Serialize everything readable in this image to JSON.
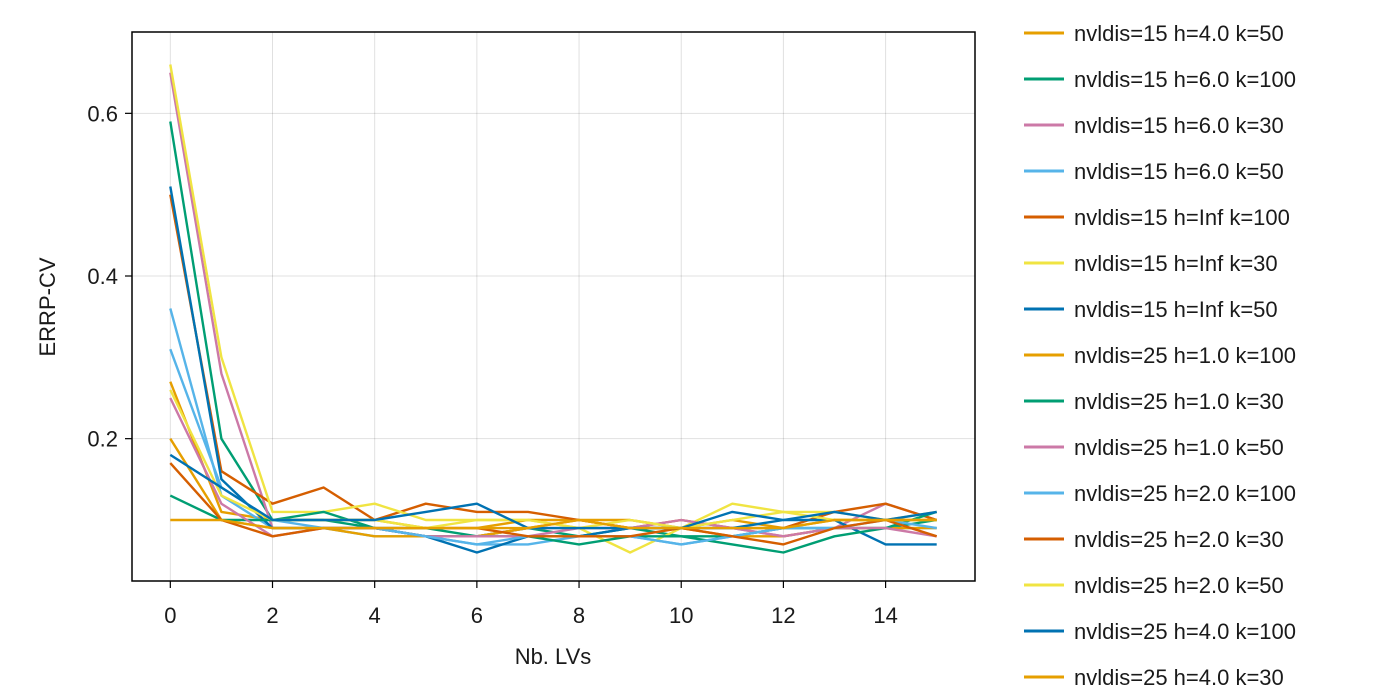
{
  "chart_data": {
    "type": "line",
    "xlabel": "Nb. LVs",
    "ylabel": "ERRP-CV",
    "xlim": [
      -0.75,
      15.75
    ],
    "ylim": [
      0.025,
      0.7
    ],
    "xticks": [
      0,
      2,
      4,
      6,
      8,
      10,
      12,
      14
    ],
    "yticks": [
      0.2,
      0.4,
      0.6
    ],
    "grid": true,
    "legend_position": "right",
    "x": [
      0,
      1,
      2,
      3,
      4,
      5,
      6,
      7,
      8,
      9,
      10,
      11,
      12,
      13,
      14,
      15
    ],
    "series": [
      {
        "name": "nvldis=15 h=4.0 k=50",
        "color": "#E69F00",
        "values": [
          0.27,
          0.11,
          0.1,
          0.1,
          0.1,
          0.09,
          0.09,
          0.1,
          0.1,
          0.09,
          0.09,
          0.1,
          0.09,
          0.1,
          0.1,
          0.1
        ]
      },
      {
        "name": "nvldis=15 h=6.0 k=100",
        "color": "#009E73",
        "values": [
          0.59,
          0.2,
          0.1,
          0.1,
          0.09,
          0.09,
          0.08,
          0.09,
          0.08,
          0.09,
          0.08,
          0.08,
          0.09,
          0.09,
          0.09,
          0.1
        ]
      },
      {
        "name": "nvldis=15 h=6.0 k=30",
        "color": "#CC79A7",
        "values": [
          0.65,
          0.28,
          0.09,
          0.09,
          0.09,
          0.08,
          0.08,
          0.09,
          0.09,
          0.09,
          0.09,
          0.09,
          0.08,
          0.09,
          0.12,
          0.1
        ]
      },
      {
        "name": "nvldis=15 h=6.0 k=50",
        "color": "#56B4E9",
        "values": [
          0.36,
          0.13,
          0.09,
          0.09,
          0.08,
          0.08,
          0.07,
          0.07,
          0.08,
          0.08,
          0.07,
          0.08,
          0.09,
          0.09,
          0.09,
          0.09
        ]
      },
      {
        "name": "nvldis=15 h=Inf k=100",
        "color": "#D55E00",
        "values": [
          0.5,
          0.16,
          0.12,
          0.14,
          0.1,
          0.12,
          0.11,
          0.11,
          0.1,
          0.09,
          0.1,
          0.09,
          0.09,
          0.11,
          0.12,
          0.1
        ]
      },
      {
        "name": "nvldis=15 h=Inf k=30",
        "color": "#F0E442",
        "values": [
          0.66,
          0.3,
          0.11,
          0.11,
          0.12,
          0.1,
          0.1,
          0.1,
          0.09,
          0.06,
          0.09,
          0.12,
          0.11,
          0.11,
          0.1,
          0.11
        ]
      },
      {
        "name": "nvldis=15 h=Inf k=50",
        "color": "#0072B2",
        "values": [
          0.51,
          0.15,
          0.09,
          0.09,
          0.09,
          0.08,
          0.06,
          0.08,
          0.08,
          0.09,
          0.09,
          0.09,
          0.1,
          0.1,
          0.07,
          0.07
        ]
      },
      {
        "name": "nvldis=25 h=1.0 k=100",
        "color": "#E69F00",
        "values": [
          0.2,
          0.1,
          0.09,
          0.09,
          0.08,
          0.08,
          0.08,
          0.09,
          0.1,
          0.1,
          0.09,
          0.08,
          0.08,
          0.09,
          0.09,
          0.09
        ]
      },
      {
        "name": "nvldis=25 h=1.0 k=30",
        "color": "#009E73",
        "values": [
          0.13,
          0.1,
          0.1,
          0.11,
          0.09,
          0.08,
          0.08,
          0.08,
          0.07,
          0.08,
          0.08,
          0.07,
          0.06,
          0.08,
          0.09,
          0.11
        ]
      },
      {
        "name": "nvldis=25 h=1.0 k=50",
        "color": "#CC79A7",
        "values": [
          0.25,
          0.12,
          0.08,
          0.09,
          0.09,
          0.08,
          0.08,
          0.08,
          0.09,
          0.09,
          0.1,
          0.09,
          0.08,
          0.09,
          0.09,
          0.08
        ]
      },
      {
        "name": "nvldis=25 h=2.0 k=100",
        "color": "#56B4E9",
        "values": [
          0.31,
          0.14,
          0.1,
          0.09,
          0.09,
          0.08,
          0.07,
          0.08,
          0.08,
          0.08,
          0.07,
          0.08,
          0.09,
          0.09,
          0.1,
          0.09
        ]
      },
      {
        "name": "nvldis=25 h=2.0 k=30",
        "color": "#D55E00",
        "values": [
          0.17,
          0.1,
          0.08,
          0.09,
          0.09,
          0.09,
          0.09,
          0.08,
          0.08,
          0.08,
          0.09,
          0.08,
          0.07,
          0.09,
          0.1,
          0.08
        ]
      },
      {
        "name": "nvldis=25 h=2.0 k=50",
        "color": "#F0E442",
        "values": [
          0.26,
          0.13,
          0.1,
          0.1,
          0.1,
          0.09,
          0.1,
          0.1,
          0.09,
          0.1,
          0.09,
          0.1,
          0.11,
          0.1,
          0.1,
          0.1
        ]
      },
      {
        "name": "nvldis=25 h=4.0 k=100",
        "color": "#0072B2",
        "values": [
          0.18,
          0.14,
          0.1,
          0.1,
          0.1,
          0.11,
          0.12,
          0.09,
          0.09,
          0.09,
          0.09,
          0.11,
          0.1,
          0.11,
          0.1,
          0.11
        ]
      },
      {
        "name": "nvldis=25 h=4.0 k=30",
        "color": "#E69F00",
        "values": [
          0.1,
          0.1,
          0.09,
          0.09,
          0.09,
          0.09,
          0.09,
          0.09,
          0.1,
          0.09,
          0.09,
          0.09,
          0.09,
          0.1,
          0.1,
          0.1
        ]
      }
    ]
  }
}
